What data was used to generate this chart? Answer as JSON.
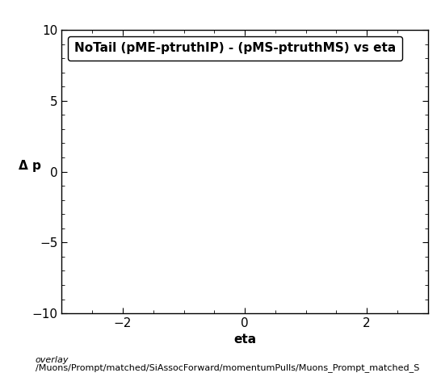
{
  "title": "NoTail (pME-ptruthIP) - (pMS-ptruthMS) vs eta",
  "xlabel": "eta",
  "ylabel": "Δ p",
  "xlim": [
    -3.0,
    3.0
  ],
  "ylim": [
    -10,
    10
  ],
  "xticks": [
    -2,
    0,
    2
  ],
  "yticks": [
    -10,
    -5,
    0,
    5,
    10
  ],
  "caption_line1": "overlay",
  "caption_line2": "/Muons/Prompt/matched/SiAssocForward/momentumPulls/Muons_Prompt_matched_S",
  "background_color": "#ffffff",
  "title_fontsize": 11,
  "axis_fontsize": 11,
  "tick_fontsize": 11,
  "caption_fontsize": 8
}
